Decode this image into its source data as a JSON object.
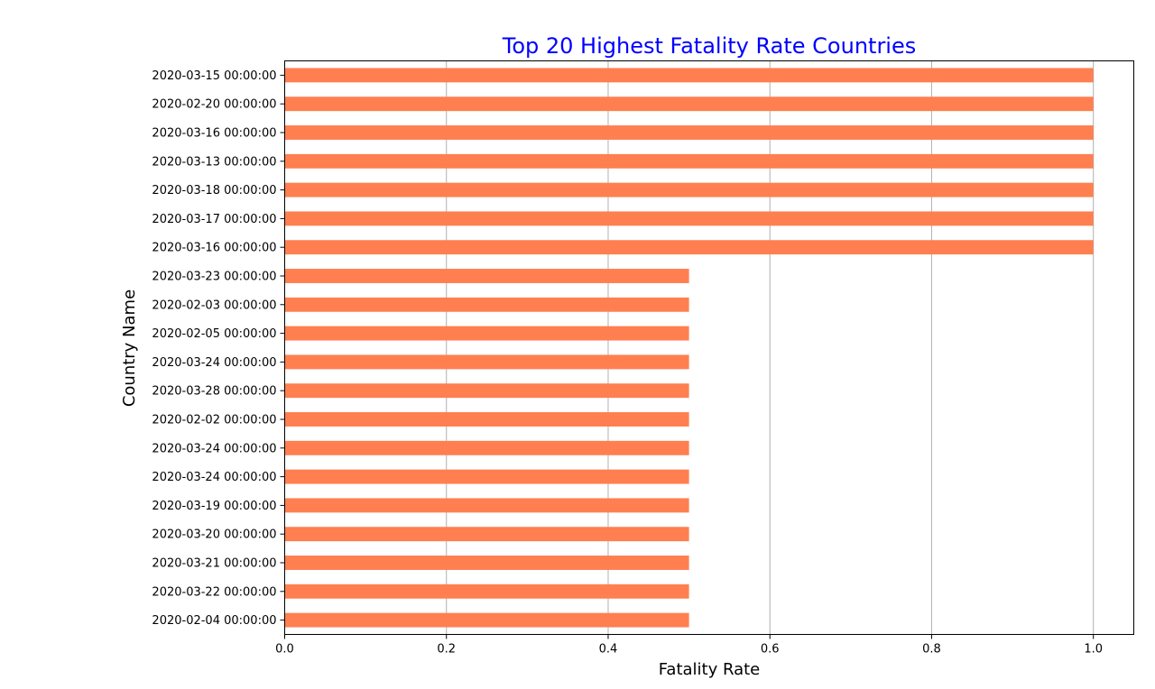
{
  "chart_data": {
    "type": "bar",
    "orientation": "horizontal",
    "title": "Top 20 Highest Fatality Rate Countries",
    "title_color": "#0000ff",
    "xlabel": "Fatality Rate",
    "ylabel": "Country Name",
    "xlim": [
      0,
      1.05
    ],
    "xticks": [
      0.0,
      0.2,
      0.4,
      0.6,
      0.8,
      1.0
    ],
    "xtick_labels": [
      "0.0",
      "0.2",
      "0.4",
      "0.6",
      "0.8",
      "1.0"
    ],
    "grid": "x-axis vertical lines",
    "bar_color": "#ff7f50",
    "categories": [
      "2020-03-15 00:00:00",
      "2020-02-20 00:00:00",
      "2020-03-16 00:00:00",
      "2020-03-13 00:00:00",
      "2020-03-18 00:00:00",
      "2020-03-17 00:00:00",
      "2020-03-16 00:00:00",
      "2020-03-23 00:00:00",
      "2020-02-03 00:00:00",
      "2020-02-05 00:00:00",
      "2020-03-24 00:00:00",
      "2020-03-28 00:00:00",
      "2020-02-02 00:00:00",
      "2020-03-24 00:00:00",
      "2020-03-24 00:00:00",
      "2020-03-19 00:00:00",
      "2020-03-20 00:00:00",
      "2020-03-21 00:00:00",
      "2020-03-22 00:00:00",
      "2020-02-04 00:00:00"
    ],
    "values": [
      1.0,
      1.0,
      1.0,
      1.0,
      1.0,
      1.0,
      1.0,
      0.5,
      0.5,
      0.5,
      0.5,
      0.5,
      0.5,
      0.5,
      0.5,
      0.5,
      0.5,
      0.5,
      0.5,
      0.5
    ]
  }
}
